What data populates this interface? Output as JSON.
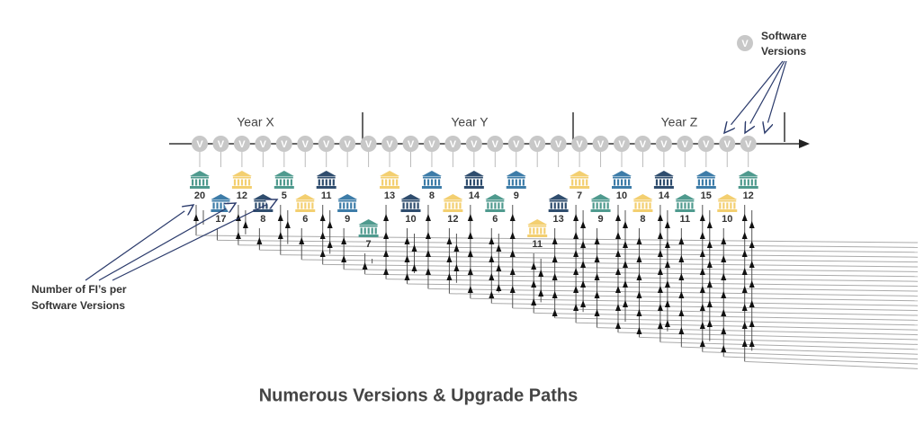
{
  "legend": {
    "symbol": "V",
    "label_lines": [
      "Software",
      "Versions"
    ]
  },
  "years": [
    "Year X",
    "Year Y",
    "Year Z"
  ],
  "version_symbol": "V",
  "fi_counts": [
    20,
    17,
    12,
    8,
    5,
    6,
    11,
    9,
    7,
    13,
    10,
    8,
    12,
    14,
    6,
    9,
    11,
    13,
    7,
    9,
    10,
    8,
    14,
    11,
    15,
    10,
    12
  ],
  "annotation_lines": [
    "Number of FI’s per",
    "Software Versions"
  ],
  "title": "Numerous Versions & Upgrade Paths"
}
